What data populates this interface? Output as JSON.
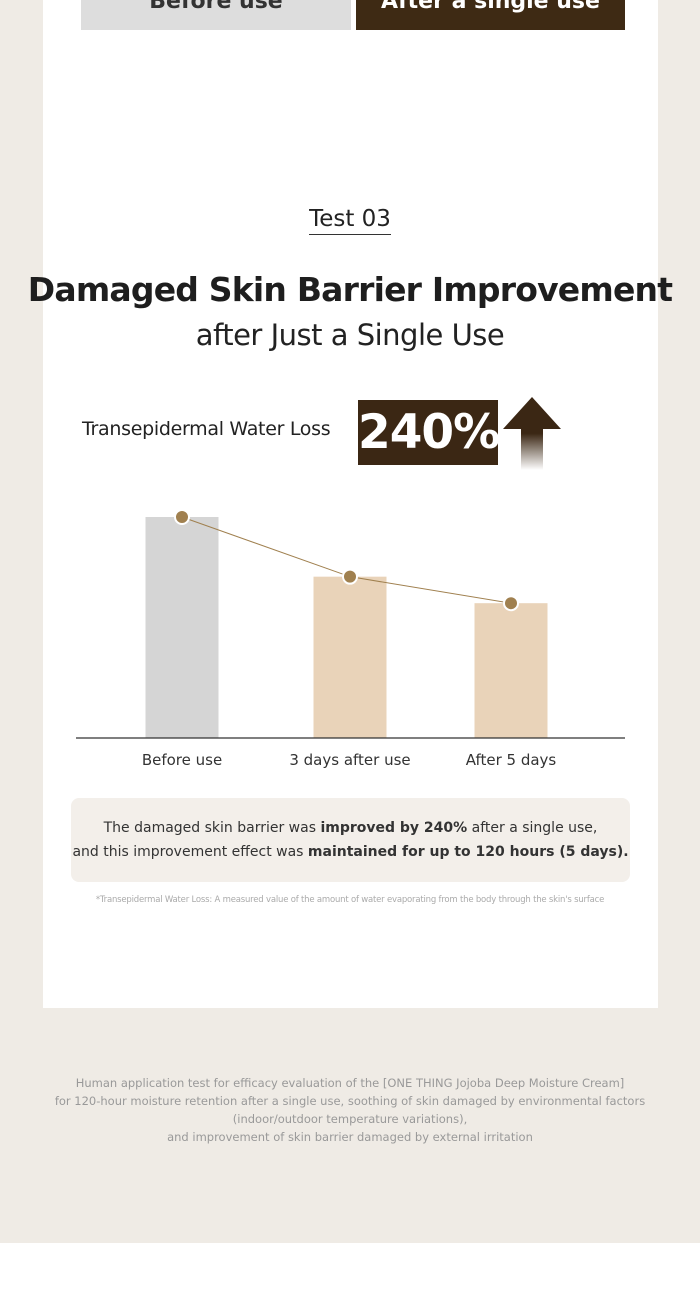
{
  "tabs": [
    "Before use",
    "After a single use"
  ],
  "test_label": "Test 03",
  "title": "Damaged Skin Barrier Improvement",
  "subtitle": "after Just a Single Use",
  "metric": {
    "label": "Transepidermal Water Loss",
    "value": "240%"
  },
  "chart_data": {
    "type": "bar",
    "categories": [
      "Before use",
      "3 days after use",
      "After 5 days"
    ],
    "values": [
      100,
      73,
      61
    ],
    "colors": [
      "#d5d5d5",
      "#e9d3b9",
      "#e9d3b9"
    ],
    "line_color": "#a0804f"
  },
  "summary": {
    "lines": [
      [
        "The damaged skin barrier was ",
        "improved by 240%",
        " after a single use,"
      ],
      [
        "and this improvement effect was ",
        "maintained for up to 120 hours (5 days)."
      ]
    ]
  },
  "footnote": "*Transepidermal Water Loss: A measured value of the amount of water evaporating from the body through the skin's surface",
  "disclaimer": [
    "Human application test for efficacy evaluation of the [ONE THING Jojoba Deep Moisture Cream]",
    "for 120-hour moisture retention after a single use, soothing of skin damaged by environmental factors",
    "(indoor/outdoor temperature variations),",
    "and improvement of skin barrier damaged by external irritation"
  ]
}
